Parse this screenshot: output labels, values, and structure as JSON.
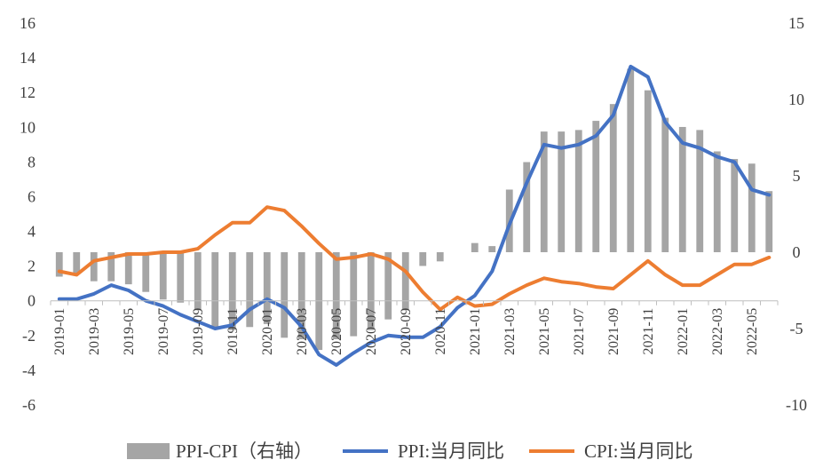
{
  "chart_data": {
    "type": "bar+line",
    "x": [
      "2019-01",
      "2019-02",
      "2019-03",
      "2019-04",
      "2019-05",
      "2019-06",
      "2019-07",
      "2019-08",
      "2019-09",
      "2019-10",
      "2019-11",
      "2019-12",
      "2020-01",
      "2020-02",
      "2020-03",
      "2020-04",
      "2020-05",
      "2020-06",
      "2020-07",
      "2020-08",
      "2020-09",
      "2020-10",
      "2020-11",
      "2020-12",
      "2021-01",
      "2021-02",
      "2021-03",
      "2021-04",
      "2021-05",
      "2021-06",
      "2021-07",
      "2021-08",
      "2021-09",
      "2021-10",
      "2021-11",
      "2021-12",
      "2022-01",
      "2022-02",
      "2022-03",
      "2022-04",
      "2022-05",
      "2022-06"
    ],
    "x_tick_labels": [
      "2019-01",
      "2019-03",
      "2019-05",
      "2019-07",
      "2019-09",
      "2019-11",
      "2020-01",
      "2020-03",
      "2020-05",
      "2020-07",
      "2020-09",
      "2020-11",
      "2021-01",
      "2021-03",
      "2021-05",
      "2021-07",
      "2021-09",
      "2021-11",
      "2022-01",
      "2022-03",
      "2022-05"
    ],
    "left_axis": {
      "min": -6,
      "max": 16,
      "step": 2,
      "ticks": [
        "-6",
        "-4",
        "-2",
        "0",
        "2",
        "4",
        "6",
        "8",
        "10",
        "12",
        "14",
        "16"
      ]
    },
    "right_axis": {
      "min": -10,
      "max": 15,
      "step": 5,
      "ticks": [
        "-10",
        "-5",
        "0",
        "5",
        "10",
        "15"
      ]
    },
    "series": [
      {
        "name": "PPI-CPI（右轴）",
        "kind": "bar",
        "axis": "right",
        "color": "#a5a5a5",
        "values": [
          -1.6,
          -1.4,
          -1.9,
          -1.9,
          -2.1,
          -2.6,
          -3.1,
          -3.3,
          -3.8,
          -4.9,
          -5.1,
          -4.9,
          -4.7,
          -5.6,
          -5.7,
          -6.4,
          -5.7,
          -5.5,
          -5.1,
          -4.4,
          -3.8,
          -0.9,
          -0.6,
          0.0,
          0.6,
          0.4,
          4.1,
          5.9,
          7.9,
          7.9,
          8.0,
          8.6,
          9.7,
          12.0,
          10.6,
          8.8,
          8.2,
          8.0,
          6.6,
          6.1,
          5.8,
          4.0
        ]
      },
      {
        "name": "PPI:当月同比",
        "kind": "line",
        "axis": "left",
        "color": "#4472c4",
        "values": [
          0.1,
          0.1,
          0.4,
          0.9,
          0.6,
          0.0,
          -0.3,
          -0.8,
          -1.2,
          -1.6,
          -1.4,
          -0.5,
          0.1,
          -0.4,
          -1.5,
          -3.1,
          -3.7,
          -3.0,
          -2.4,
          -2.0,
          -2.1,
          -2.1,
          -1.5,
          -0.4,
          0.3,
          1.7,
          4.4,
          6.8,
          9.0,
          8.8,
          9.0,
          9.5,
          10.7,
          13.5,
          12.9,
          10.3,
          9.1,
          8.8,
          8.3,
          8.0,
          6.4,
          6.1
        ]
      },
      {
        "name": "CPI:当月同比",
        "kind": "line",
        "axis": "left",
        "color": "#ed7d31",
        "values": [
          1.7,
          1.5,
          2.3,
          2.5,
          2.7,
          2.7,
          2.8,
          2.8,
          3.0,
          3.8,
          4.5,
          4.5,
          5.4,
          5.2,
          4.3,
          3.3,
          2.4,
          2.5,
          2.7,
          2.4,
          1.7,
          0.5,
          -0.5,
          0.2,
          -0.3,
          -0.2,
          0.4,
          0.9,
          1.3,
          1.1,
          1.0,
          0.8,
          0.7,
          1.5,
          2.3,
          1.5,
          0.9,
          0.9,
          1.5,
          2.1,
          2.1,
          2.5
        ]
      }
    ],
    "legend": {
      "placement": "bottom"
    },
    "grid": false
  }
}
